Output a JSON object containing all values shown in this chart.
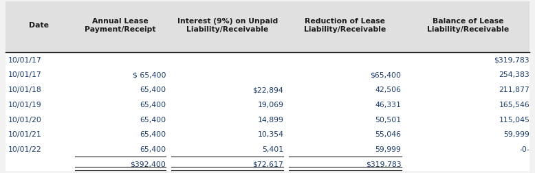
{
  "header_labels": [
    "Date",
    "Annual Lease\nPayment/Receipt",
    "Interest (9%) on Unpaid\nLiability/Receivable",
    "Reduction of Lease\nLiability/Receivable",
    "Balance of Lease\nLiability/Receivable"
  ],
  "rows": [
    [
      "10/01/17",
      "",
      "",
      "",
      "$319,783"
    ],
    [
      "10/01/17",
      "$ 65,400",
      "",
      "$65,400",
      "254,383"
    ],
    [
      "10/01/18",
      "65,400",
      "$22,894",
      "42,506",
      "211,877"
    ],
    [
      "10/01/19",
      "65,400",
      "19,069",
      "46,331",
      "165,546"
    ],
    [
      "10/01/20",
      "65,400",
      "14,899",
      "50,501",
      "115,045"
    ],
    [
      "10/01/21",
      "65,400",
      "10,354",
      "55,046",
      "59,999"
    ],
    [
      "10/01/22",
      "65,400",
      "5,401",
      "59,999",
      "-0-"
    ],
    [
      "",
      "$392,400",
      "$72,617",
      "$319,783",
      ""
    ]
  ],
  "header_bg": "#e0e0e0",
  "table_bg": "#ffffff",
  "fig_bg": "#f2f2f2",
  "text_color": "#1a3a6b",
  "header_text_color": "#1a1a1a",
  "font_size": 7.8,
  "header_font_size": 7.8,
  "fig_width": 7.78,
  "fig_height": 2.53
}
